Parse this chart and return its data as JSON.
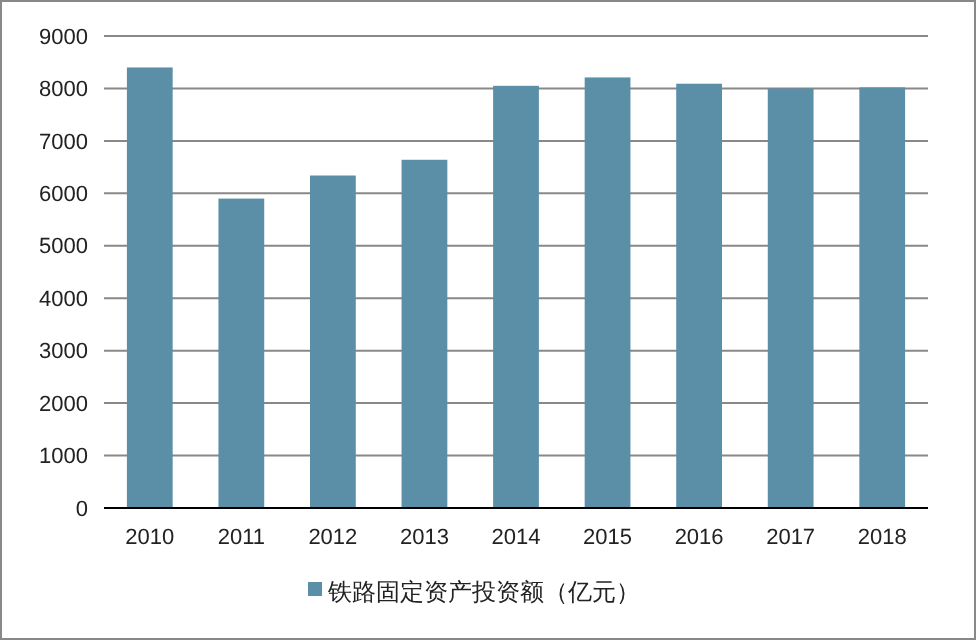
{
  "chart_data": {
    "type": "bar",
    "categories": [
      "2010",
      "2011",
      "2012",
      "2013",
      "2014",
      "2015",
      "2016",
      "2017",
      "2018"
    ],
    "series": [
      {
        "name": "铁路固定资产投资额（亿元）",
        "color": "#5b8fa8",
        "values": [
          8400,
          5900,
          6340,
          6640,
          8050,
          8210,
          8090,
          8000,
          8020
        ]
      }
    ],
    "ylim": [
      0,
      9000
    ],
    "yticks": [
      0,
      1000,
      2000,
      3000,
      4000,
      5000,
      6000,
      7000,
      8000,
      9000
    ],
    "grid": "y",
    "legend": "bottom"
  }
}
